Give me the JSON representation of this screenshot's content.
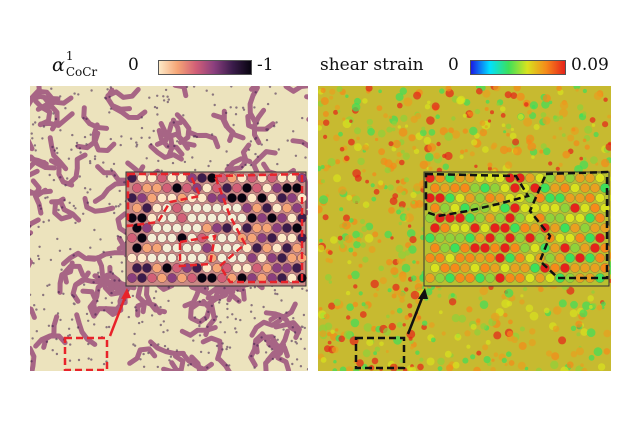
{
  "left_panel": {
    "symbol": "α",
    "superscript": "1",
    "subscript": "CoCr",
    "cbar_min": "0",
    "cbar_max": "-1",
    "colorbar_colors": [
      "#fde9c7",
      "#f5a576",
      "#d25f77",
      "#8a3f7e",
      "#3b1c4b",
      "#080410"
    ],
    "highlight_color": "#e8232a"
  },
  "right_panel": {
    "label": "shear strain",
    "cbar_min": "0",
    "cbar_max": "0.09",
    "colorbar_colors": [
      "#1a1ae6",
      "#00e0ff",
      "#3de05a",
      "#d9e21e",
      "#f58a1a",
      "#e6221a"
    ],
    "highlight_color": "#111111"
  }
}
